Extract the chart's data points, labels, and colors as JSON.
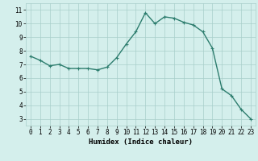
{
  "x": [
    0,
    1,
    2,
    3,
    4,
    5,
    6,
    7,
    8,
    9,
    10,
    11,
    12,
    13,
    14,
    15,
    16,
    17,
    18,
    19,
    20,
    21,
    22,
    23
  ],
  "y": [
    7.6,
    7.3,
    6.9,
    7.0,
    6.7,
    6.7,
    6.7,
    6.6,
    6.8,
    7.5,
    8.5,
    9.4,
    10.8,
    10.0,
    10.5,
    10.4,
    10.1,
    9.9,
    9.4,
    8.2,
    5.2,
    4.7,
    3.7,
    3.0
  ],
  "line_color": "#2d7d6e",
  "marker": "+",
  "marker_size": 3,
  "linewidth": 1.0,
  "xlabel": "Humidex (Indice chaleur)",
  "ylabel": "",
  "xlim": [
    -0.5,
    23.5
  ],
  "ylim": [
    2.5,
    11.5
  ],
  "xticks": [
    0,
    1,
    2,
    3,
    4,
    5,
    6,
    7,
    8,
    9,
    10,
    11,
    12,
    13,
    14,
    15,
    16,
    17,
    18,
    19,
    20,
    21,
    22,
    23
  ],
  "yticks": [
    3,
    4,
    5,
    6,
    7,
    8,
    9,
    10,
    11
  ],
  "bg_color": "#d4efec",
  "grid_color": "#a8ceca",
  "label_fontsize": 6.5,
  "tick_fontsize": 5.5
}
